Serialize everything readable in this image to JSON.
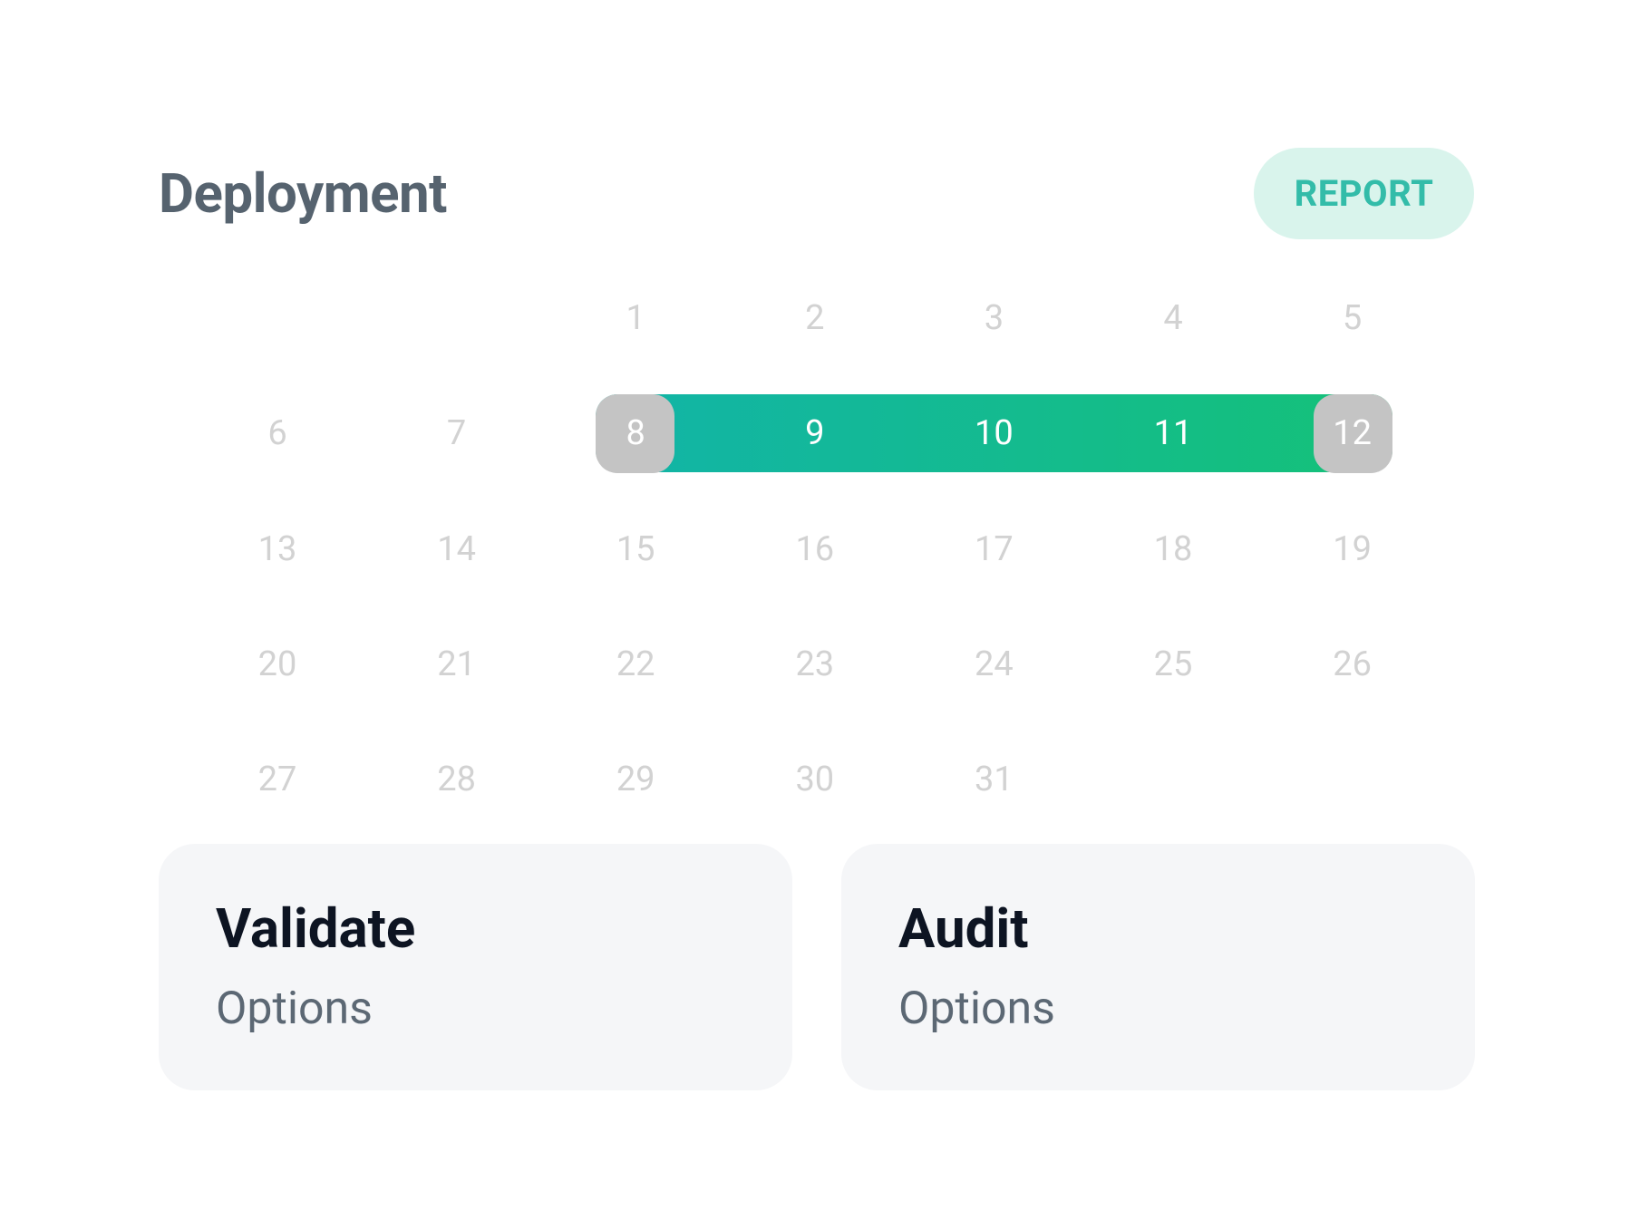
{
  "header": {
    "title": "Deployment",
    "button": "REPORT"
  },
  "calendar": {
    "days": [
      1,
      2,
      3,
      4,
      5,
      6,
      7,
      8,
      9,
      10,
      11,
      12,
      13,
      14,
      15,
      16,
      17,
      18,
      19,
      20,
      21,
      22,
      23,
      24,
      25,
      26,
      27,
      28,
      29,
      30,
      31
    ],
    "selected": [
      8,
      12
    ]
  },
  "cards": [
    {
      "title": "Validate",
      "subtitle": "Options"
    },
    {
      "title": "Audit",
      "subtitle": "Options"
    }
  ]
}
